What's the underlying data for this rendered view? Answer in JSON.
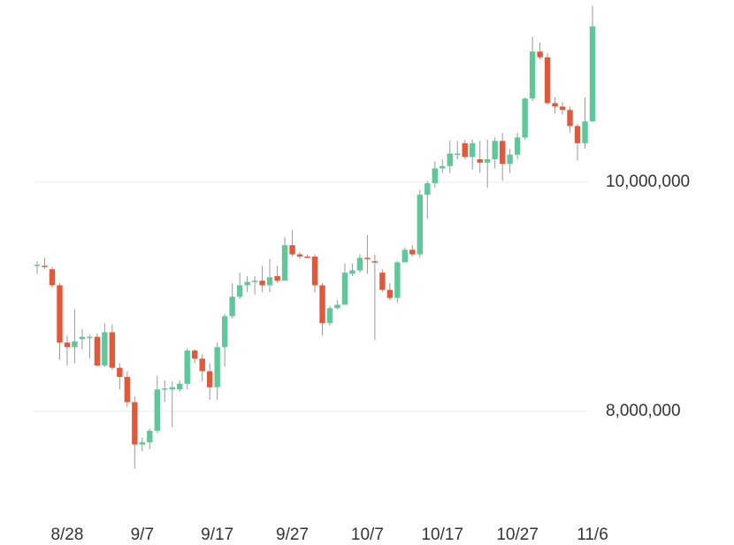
{
  "chart_data": {
    "type": "candlestick",
    "categories": [
      null,
      null,
      null,
      null,
      "8/28",
      null,
      null,
      null,
      null,
      null,
      null,
      null,
      null,
      null,
      "9/7",
      null,
      null,
      null,
      null,
      null,
      null,
      null,
      null,
      null,
      "9/17",
      null,
      null,
      null,
      null,
      null,
      null,
      null,
      null,
      null,
      "9/27",
      null,
      null,
      null,
      null,
      null,
      null,
      null,
      null,
      null,
      "10/7",
      null,
      null,
      null,
      null,
      null,
      null,
      null,
      null,
      null,
      "10/17",
      null,
      null,
      null,
      null,
      null,
      null,
      null,
      null,
      null,
      "10/27",
      null,
      null,
      null,
      null,
      null,
      null,
      null,
      null,
      null,
      "11/6"
    ],
    "open": [
      9270000,
      9270000,
      9240000,
      9100000,
      8600000,
      8560000,
      8630000,
      8640000,
      8650000,
      8400000,
      8690000,
      8380000,
      8300000,
      8080000,
      7710000,
      7730000,
      7830000,
      8190000,
      8190000,
      8190000,
      8240000,
      8530000,
      8460000,
      8350000,
      8210000,
      8560000,
      8830000,
      9000000,
      9100000,
      9130000,
      9140000,
      9100000,
      9180000,
      9140000,
      9450000,
      9370000,
      9350000,
      9350000,
      9100000,
      8770000,
      8900000,
      8930000,
      9200000,
      9230000,
      9340000,
      9310000,
      9210000,
      9060000,
      8990000,
      9300000,
      9410000,
      9370000,
      9890000,
      9990000,
      10120000,
      10140000,
      10240000,
      10340000,
      10220000,
      10200000,
      10170000,
      10200000,
      10360000,
      10160000,
      10240000,
      10390000,
      10730000,
      11140000,
      11090000,
      10690000,
      10660000,
      10630000,
      10490000,
      10340000,
      10530000
    ],
    "high": [
      9310000,
      9340000,
      9260000,
      9120000,
      8660000,
      8890000,
      8720000,
      8670000,
      8680000,
      8770000,
      8760000,
      8420000,
      8350000,
      8130000,
      7770000,
      7850000,
      8310000,
      8270000,
      8260000,
      8270000,
      8550000,
      8540000,
      8500000,
      8420000,
      8600000,
      8850000,
      9120000,
      9210000,
      9180000,
      9180000,
      9270000,
      9330000,
      9270000,
      9520000,
      9580000,
      9390000,
      9370000,
      9370000,
      9120000,
      8920000,
      8970000,
      9290000,
      9290000,
      9370000,
      9540000,
      9370000,
      9240000,
      9120000,
      9310000,
      9430000,
      9450000,
      9930000,
      10010000,
      10180000,
      10200000,
      10360000,
      10360000,
      10370000,
      10370000,
      10360000,
      10370000,
      10390000,
      10430000,
      10290000,
      10430000,
      10740000,
      11270000,
      11220000,
      11130000,
      10740000,
      10700000,
      10660000,
      10510000,
      10740000,
      11540000
    ],
    "low": [
      9200000,
      9240000,
      9080000,
      8450000,
      8400000,
      8420000,
      8540000,
      8460000,
      8390000,
      8390000,
      8360000,
      8190000,
      8040000,
      7500000,
      7650000,
      7670000,
      7810000,
      8080000,
      7860000,
      8170000,
      8190000,
      8420000,
      8260000,
      8100000,
      8100000,
      8390000,
      8810000,
      8980000,
      9040000,
      9020000,
      9040000,
      9040000,
      9120000,
      9140000,
      9350000,
      9330000,
      9340000,
      9040000,
      8660000,
      8750000,
      8890000,
      8930000,
      9180000,
      9210000,
      9200000,
      8620000,
      9040000,
      8970000,
      8950000,
      9300000,
      9350000,
      9340000,
      9680000,
      9950000,
      10080000,
      10080000,
      10200000,
      10200000,
      10110000,
      10080000,
      9950000,
      10120000,
      10010000,
      10080000,
      10200000,
      10370000,
      10710000,
      11070000,
      10680000,
      10600000,
      10590000,
      10430000,
      10190000,
      10290000,
      10530000
    ],
    "close": [
      9280000,
      9260000,
      9100000,
      8600000,
      8560000,
      8610000,
      8650000,
      8650000,
      8400000,
      8690000,
      8380000,
      8300000,
      8080000,
      7710000,
      7730000,
      7830000,
      8190000,
      8200000,
      8210000,
      8240000,
      8530000,
      8460000,
      8350000,
      8210000,
      8560000,
      8830000,
      9000000,
      9100000,
      9130000,
      9140000,
      9100000,
      9170000,
      9140000,
      9450000,
      9370000,
      9350000,
      9340000,
      9100000,
      8770000,
      8900000,
      8930000,
      9210000,
      9230000,
      9340000,
      9330000,
      9300000,
      9060000,
      8990000,
      9300000,
      9410000,
      9370000,
      9890000,
      9990000,
      10120000,
      10140000,
      10250000,
      10250000,
      10220000,
      10340000,
      10170000,
      10200000,
      10360000,
      10160000,
      10240000,
      10390000,
      10730000,
      11140000,
      11090000,
      10690000,
      10660000,
      10630000,
      10490000,
      10340000,
      10530000,
      11360000
    ],
    "up_color": "#5ec89b",
    "down_color": "#e4583a",
    "ylim": [
      7270000,
      11590000
    ],
    "yticks": [
      {
        "value": 8000000,
        "label": "8,000,000"
      },
      {
        "value": 10000000,
        "label": "10,000,000"
      }
    ],
    "grid": true
  }
}
